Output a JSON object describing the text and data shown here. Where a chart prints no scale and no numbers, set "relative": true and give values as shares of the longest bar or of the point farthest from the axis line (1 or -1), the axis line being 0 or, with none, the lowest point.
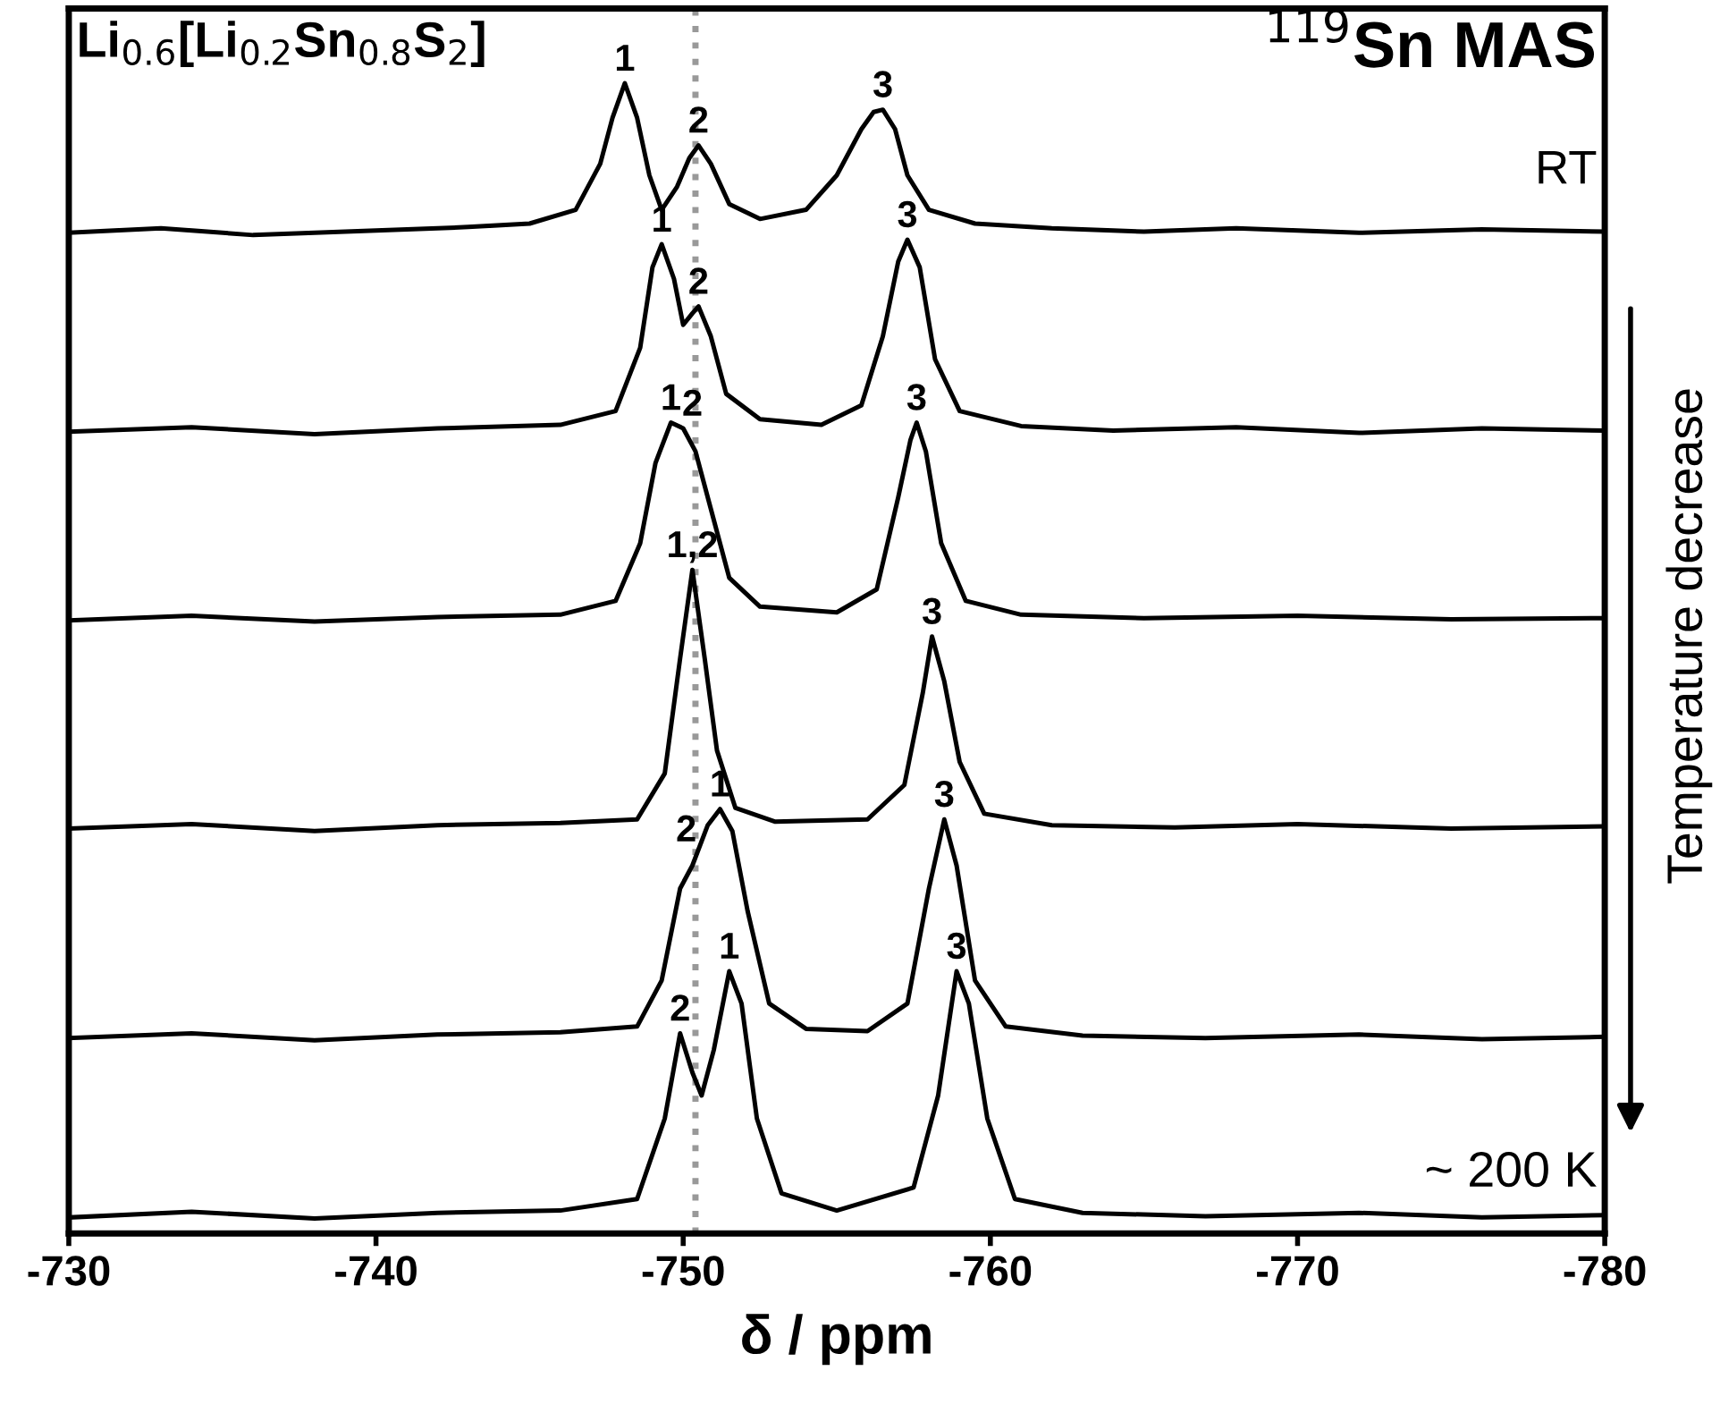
{
  "chart_data": {
    "type": "line",
    "relative": true,
    "xlabel": "δ / ppm",
    "xlim": [
      -730,
      -780
    ],
    "xticks": [
      -730,
      -740,
      -750,
      -760,
      -770,
      -780
    ],
    "tick_labels": "x",
    "grid": false,
    "legend": false,
    "marker": "none",
    "line_style": "solid",
    "series": [
      {
        "color": "#000000",
        "x": [
          -730,
          -733,
          -736,
          -740,
          -743,
          -745,
          -746.5,
          -747.3,
          -747.7,
          -748.1,
          -748.5,
          -748.9,
          -749.3,
          -749.8,
          -750.2,
          -750.5,
          -750.9,
          -751.5,
          -752.5,
          -754,
          -755.0,
          -755.8,
          -756.2,
          -756.5,
          -756.9,
          -757.3,
          -758,
          -759.5,
          -762,
          -765,
          -768,
          -772,
          -776,
          -780
        ],
        "values": [
          0.87,
          0.874,
          0.868,
          0.872,
          0.875,
          0.878,
          0.89,
          0.93,
          0.97,
          1.0,
          0.97,
          0.92,
          0.89,
          0.91,
          0.935,
          0.946,
          0.93,
          0.895,
          0.882,
          0.89,
          0.92,
          0.96,
          0.975,
          0.977,
          0.96,
          0.92,
          0.89,
          0.878,
          0.874,
          0.871,
          0.874,
          0.87,
          0.873,
          0.871
        ]
      },
      {
        "color": "#000000",
        "x": [
          -730,
          -734,
          -738,
          -742,
          -746,
          -747.8,
          -748.6,
          -749.0,
          -749.3,
          -749.7,
          -750.0,
          -750.3,
          -750.5,
          -750.9,
          -751.4,
          -752.5,
          -754.5,
          -755.8,
          -756.5,
          -757.0,
          -757.3,
          -757.7,
          -758.2,
          -759,
          -761,
          -764,
          -768,
          -772,
          -776,
          -780
        ],
        "values": [
          0.697,
          0.701,
          0.695,
          0.7,
          0.703,
          0.715,
          0.77,
          0.84,
          0.86,
          0.83,
          0.79,
          0.8,
          0.806,
          0.78,
          0.73,
          0.708,
          0.703,
          0.72,
          0.78,
          0.845,
          0.864,
          0.84,
          0.76,
          0.715,
          0.702,
          0.698,
          0.701,
          0.696,
          0.7,
          0.698
        ]
      },
      {
        "color": "#000000",
        "x": [
          -730,
          -734,
          -738,
          -742,
          -746,
          -747.8,
          -748.6,
          -749.1,
          -749.6,
          -750.0,
          -750.4,
          -750.9,
          -751.5,
          -752.5,
          -755,
          -756.3,
          -757.0,
          -757.4,
          -757.6,
          -757.9,
          -758.4,
          -759.2,
          -761,
          -765,
          -770,
          -775,
          -780
        ],
        "values": [
          0.533,
          0.537,
          0.532,
          0.536,
          0.538,
          0.55,
          0.6,
          0.67,
          0.705,
          0.7,
          0.68,
          0.63,
          0.57,
          0.545,
          0.54,
          0.56,
          0.64,
          0.69,
          0.705,
          0.68,
          0.6,
          0.55,
          0.538,
          0.535,
          0.537,
          0.534,
          0.535
        ]
      },
      {
        "color": "#000000",
        "x": [
          -730,
          -734,
          -738,
          -742,
          -746,
          -748.5,
          -749.4,
          -749.9,
          -750.3,
          -750.7,
          -751.1,
          -751.7,
          -753,
          -756,
          -757.2,
          -757.8,
          -758.1,
          -758.5,
          -759.0,
          -759.8,
          -762,
          -766,
          -770,
          -775,
          -780
        ],
        "values": [
          0.352,
          0.356,
          0.35,
          0.355,
          0.357,
          0.36,
          0.4,
          0.5,
          0.577,
          0.5,
          0.42,
          0.37,
          0.358,
          0.36,
          0.39,
          0.47,
          0.519,
          0.48,
          0.41,
          0.365,
          0.355,
          0.353,
          0.356,
          0.352,
          0.354
        ]
      },
      {
        "color": "#000000",
        "x": [
          -730,
          -734,
          -738,
          -742,
          -746,
          -748.5,
          -749.3,
          -749.9,
          -750.3,
          -750.8,
          -751.2,
          -751.6,
          -752.1,
          -752.8,
          -754,
          -756,
          -757.3,
          -758.0,
          -758.5,
          -758.9,
          -759.5,
          -760.5,
          -763,
          -767,
          -772,
          -776,
          -780
        ],
        "values": [
          0.17,
          0.174,
          0.168,
          0.173,
          0.175,
          0.18,
          0.22,
          0.3,
          0.32,
          0.355,
          0.369,
          0.35,
          0.28,
          0.2,
          0.178,
          0.176,
          0.2,
          0.3,
          0.36,
          0.32,
          0.22,
          0.18,
          0.172,
          0.17,
          0.173,
          0.169,
          0.171
        ]
      },
      {
        "color": "#000000",
        "x": [
          -730,
          -734,
          -738,
          -742,
          -746,
          -748.5,
          -749.4,
          -749.9,
          -750.3,
          -750.6,
          -751.0,
          -751.5,
          -751.9,
          -752.4,
          -753.2,
          -755,
          -757.5,
          -758.3,
          -758.9,
          -759.3,
          -759.9,
          -760.8,
          -763,
          -767,
          -772,
          -776,
          -780
        ],
        "values": [
          0.014,
          0.019,
          0.013,
          0.018,
          0.02,
          0.03,
          0.1,
          0.174,
          0.14,
          0.12,
          0.16,
          0.228,
          0.2,
          0.1,
          0.035,
          0.02,
          0.04,
          0.12,
          0.228,
          0.2,
          0.1,
          0.03,
          0.018,
          0.015,
          0.018,
          0.014,
          0.016
        ]
      }
    ],
    "ref_lines": [
      {
        "axis": "x",
        "value": -750.4,
        "color": "#999999",
        "line_style": "dotted"
      }
    ],
    "annotations": [
      {
        "text": "1",
        "x": -748.1,
        "y": 1.0
      },
      {
        "text": "2",
        "x": -750.5,
        "y": 0.946
      },
      {
        "text": "3",
        "x": -756.5,
        "y": 0.977
      },
      {
        "text": "1",
        "x": -749.3,
        "y": 0.86
      },
      {
        "text": "2",
        "x": -750.5,
        "y": 0.806
      },
      {
        "text": "3",
        "x": -757.3,
        "y": 0.864
      },
      {
        "text": "1",
        "x": -749.6,
        "y": 0.705
      },
      {
        "text": "2",
        "x": -750.3,
        "y": 0.7
      },
      {
        "text": "3",
        "x": -757.6,
        "y": 0.705
      },
      {
        "text": "1,2",
        "x": -750.3,
        "y": 0.577
      },
      {
        "text": "3",
        "x": -758.1,
        "y": 0.519
      },
      {
        "text": "2",
        "x": -750.1,
        "y": 0.33
      },
      {
        "text": "1",
        "x": -751.2,
        "y": 0.369
      },
      {
        "text": "3",
        "x": -758.5,
        "y": 0.36
      },
      {
        "text": "2",
        "x": -749.9,
        "y": 0.174
      },
      {
        "text": "1",
        "x": -751.5,
        "y": 0.228
      },
      {
        "text": "3",
        "x": -758.9,
        "y": 0.228
      },
      "Li$_{0.6}$[Li$_{0.2}$Sn$_{0.8}$S$_{2}$]",
      "$^{119}$Sn MAS",
      "RT",
      "~ 200 K",
      "Temperature decrease"
    ]
  }
}
